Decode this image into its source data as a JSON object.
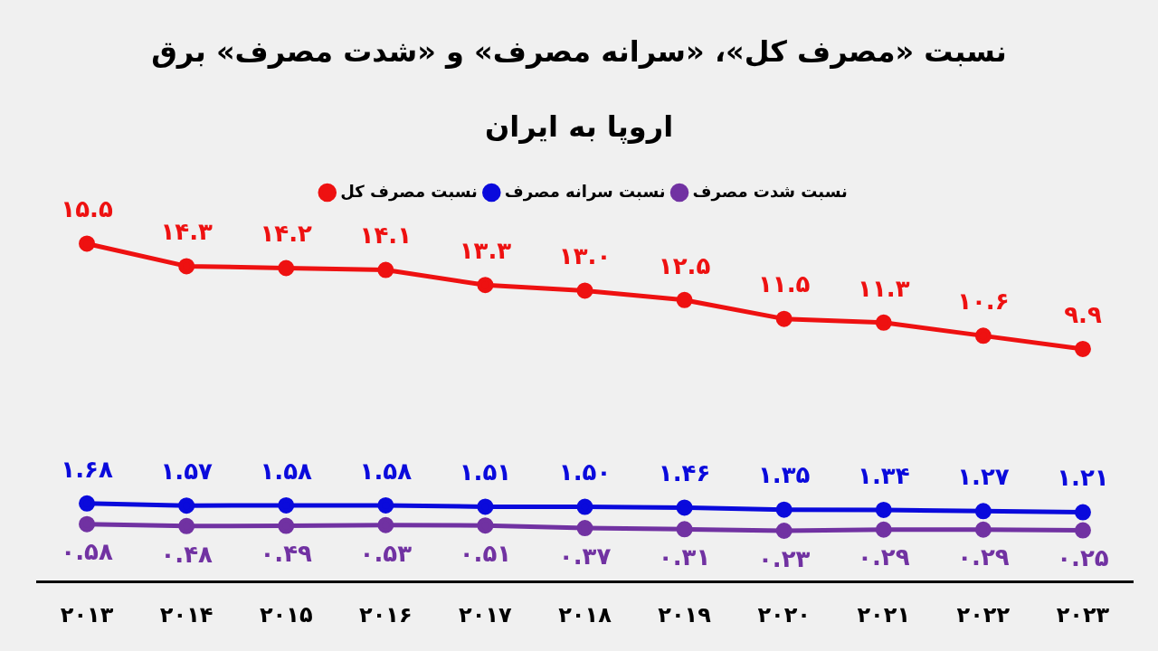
{
  "chart_data": {
    "type": "line",
    "title": "نسبت «مصرف کل»، «سرانه مصرف» و «شدت مصرف» برق اروپا به ایران",
    "categories": [
      "۲۰۱۳",
      "۲۰۱۴",
      "۲۰۱۵",
      "۲۰۱۶",
      "۲۰۱۷",
      "۲۰۱۸",
      "۲۰۱۹",
      "۲۰۲۰",
      "۲۰۲۱",
      "۲۰۲۲",
      "۲۰۲۳"
    ],
    "series": [
      {
        "name": "نسبت مصرف کل",
        "color": "#ee1111",
        "values": [
          15.5,
          14.3,
          14.2,
          14.1,
          13.3,
          13.0,
          12.5,
          11.5,
          11.3,
          10.6,
          9.9
        ],
        "value_labels": [
          "۱۵.۵",
          "۱۴.۳",
          "۱۴.۲",
          "۱۴.۱",
          "۱۳.۳",
          "۱۳.۰",
          "۱۲.۵",
          "۱۱.۵",
          "۱۱.۳",
          "۱۰.۶",
          "۹.۹"
        ]
      },
      {
        "name": "نسبت سرانه مصرف",
        "color": "#0a0adc",
        "values": [
          1.68,
          1.57,
          1.58,
          1.58,
          1.51,
          1.5,
          1.46,
          1.35,
          1.34,
          1.27,
          1.21
        ],
        "value_labels": [
          "۱.۶۸",
          "۱.۵۷",
          "۱.۵۸",
          "۱.۵۸",
          "۱.۵۱",
          "۱.۵۰",
          "۱.۴۶",
          "۱.۳۵",
          "۱.۳۴",
          "۱.۲۷",
          "۱.۲۱"
        ]
      },
      {
        "name": "نسبت شدت مصرف",
        "color": "#7132a2",
        "values": [
          0.58,
          0.48,
          0.49,
          0.53,
          0.51,
          0.37,
          0.31,
          0.23,
          0.29,
          0.29,
          0.25
        ],
        "value_labels": [
          "۰.۵۸",
          "۰.۴۸",
          "۰.۴۹",
          "۰.۵۳",
          "۰.۵۱",
          "۰.۳۷",
          "۰.۳۱",
          "۰.۲۳",
          "۰.۲۹",
          "۰.۲۹",
          "۰.۲۵"
        ]
      }
    ],
    "tick_labels": "x",
    "legend": "top",
    "marker": "circle",
    "line_style": "solid"
  }
}
